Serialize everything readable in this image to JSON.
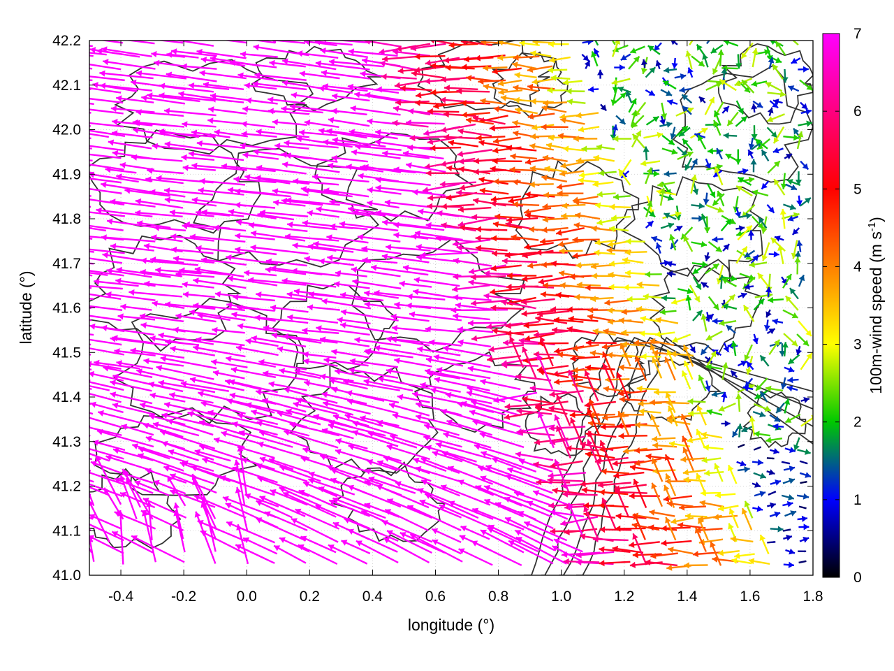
{
  "chart_data": {
    "type": "vector-field",
    "xlabel": "longitude (°)",
    "ylabel": "latitude (°)",
    "xlim": [
      -0.5,
      1.8
    ],
    "ylim": [
      41.0,
      42.2
    ],
    "xticks": [
      "-0.4",
      "-0.2",
      "0.0",
      "0.2",
      "0.4",
      "0.6",
      "0.8",
      "1.0",
      "1.2",
      "1.4",
      "1.6",
      "1.8"
    ],
    "xtick_values": [
      -0.4,
      -0.2,
      0.0,
      0.2,
      0.4,
      0.6,
      0.8,
      1.0,
      1.2,
      1.4,
      1.6,
      1.8
    ],
    "yticks": [
      "41.0",
      "41.1",
      "41.2",
      "41.3",
      "41.4",
      "41.5",
      "41.6",
      "41.7",
      "41.8",
      "41.9",
      "42.0",
      "42.1",
      "42.2"
    ],
    "ytick_values": [
      41.0,
      41.1,
      41.2,
      41.3,
      41.4,
      41.5,
      41.6,
      41.7,
      41.8,
      41.9,
      42.0,
      42.1,
      42.2
    ],
    "grid": true,
    "colorbar": {
      "label_main": "100m-wind speed (m s",
      "label_sup": "-1",
      "label_end": ")",
      "range": [
        0,
        7
      ],
      "ticks": [
        "0",
        "1",
        "2",
        "3",
        "4",
        "5",
        "6",
        "7"
      ],
      "tick_values": [
        0,
        1,
        2,
        3,
        4,
        5,
        6,
        7
      ],
      "colormap": [
        "#000000",
        "#0000ff",
        "#00c800",
        "#ffff00",
        "#ff8000",
        "#ff0000",
        "#ff00ff"
      ]
    },
    "wind_field_description": {
      "regime_west": "strong easterly flow, speed >= 7 m/s (magenta), pointing west",
      "regime_center": "moderate easterly flow 3-6 m/s (yellow/orange/red)",
      "regime_east": "weak variable flow 0-3 m/s (blue/green), sea breeze region"
    },
    "contour_color": "#333333"
  }
}
